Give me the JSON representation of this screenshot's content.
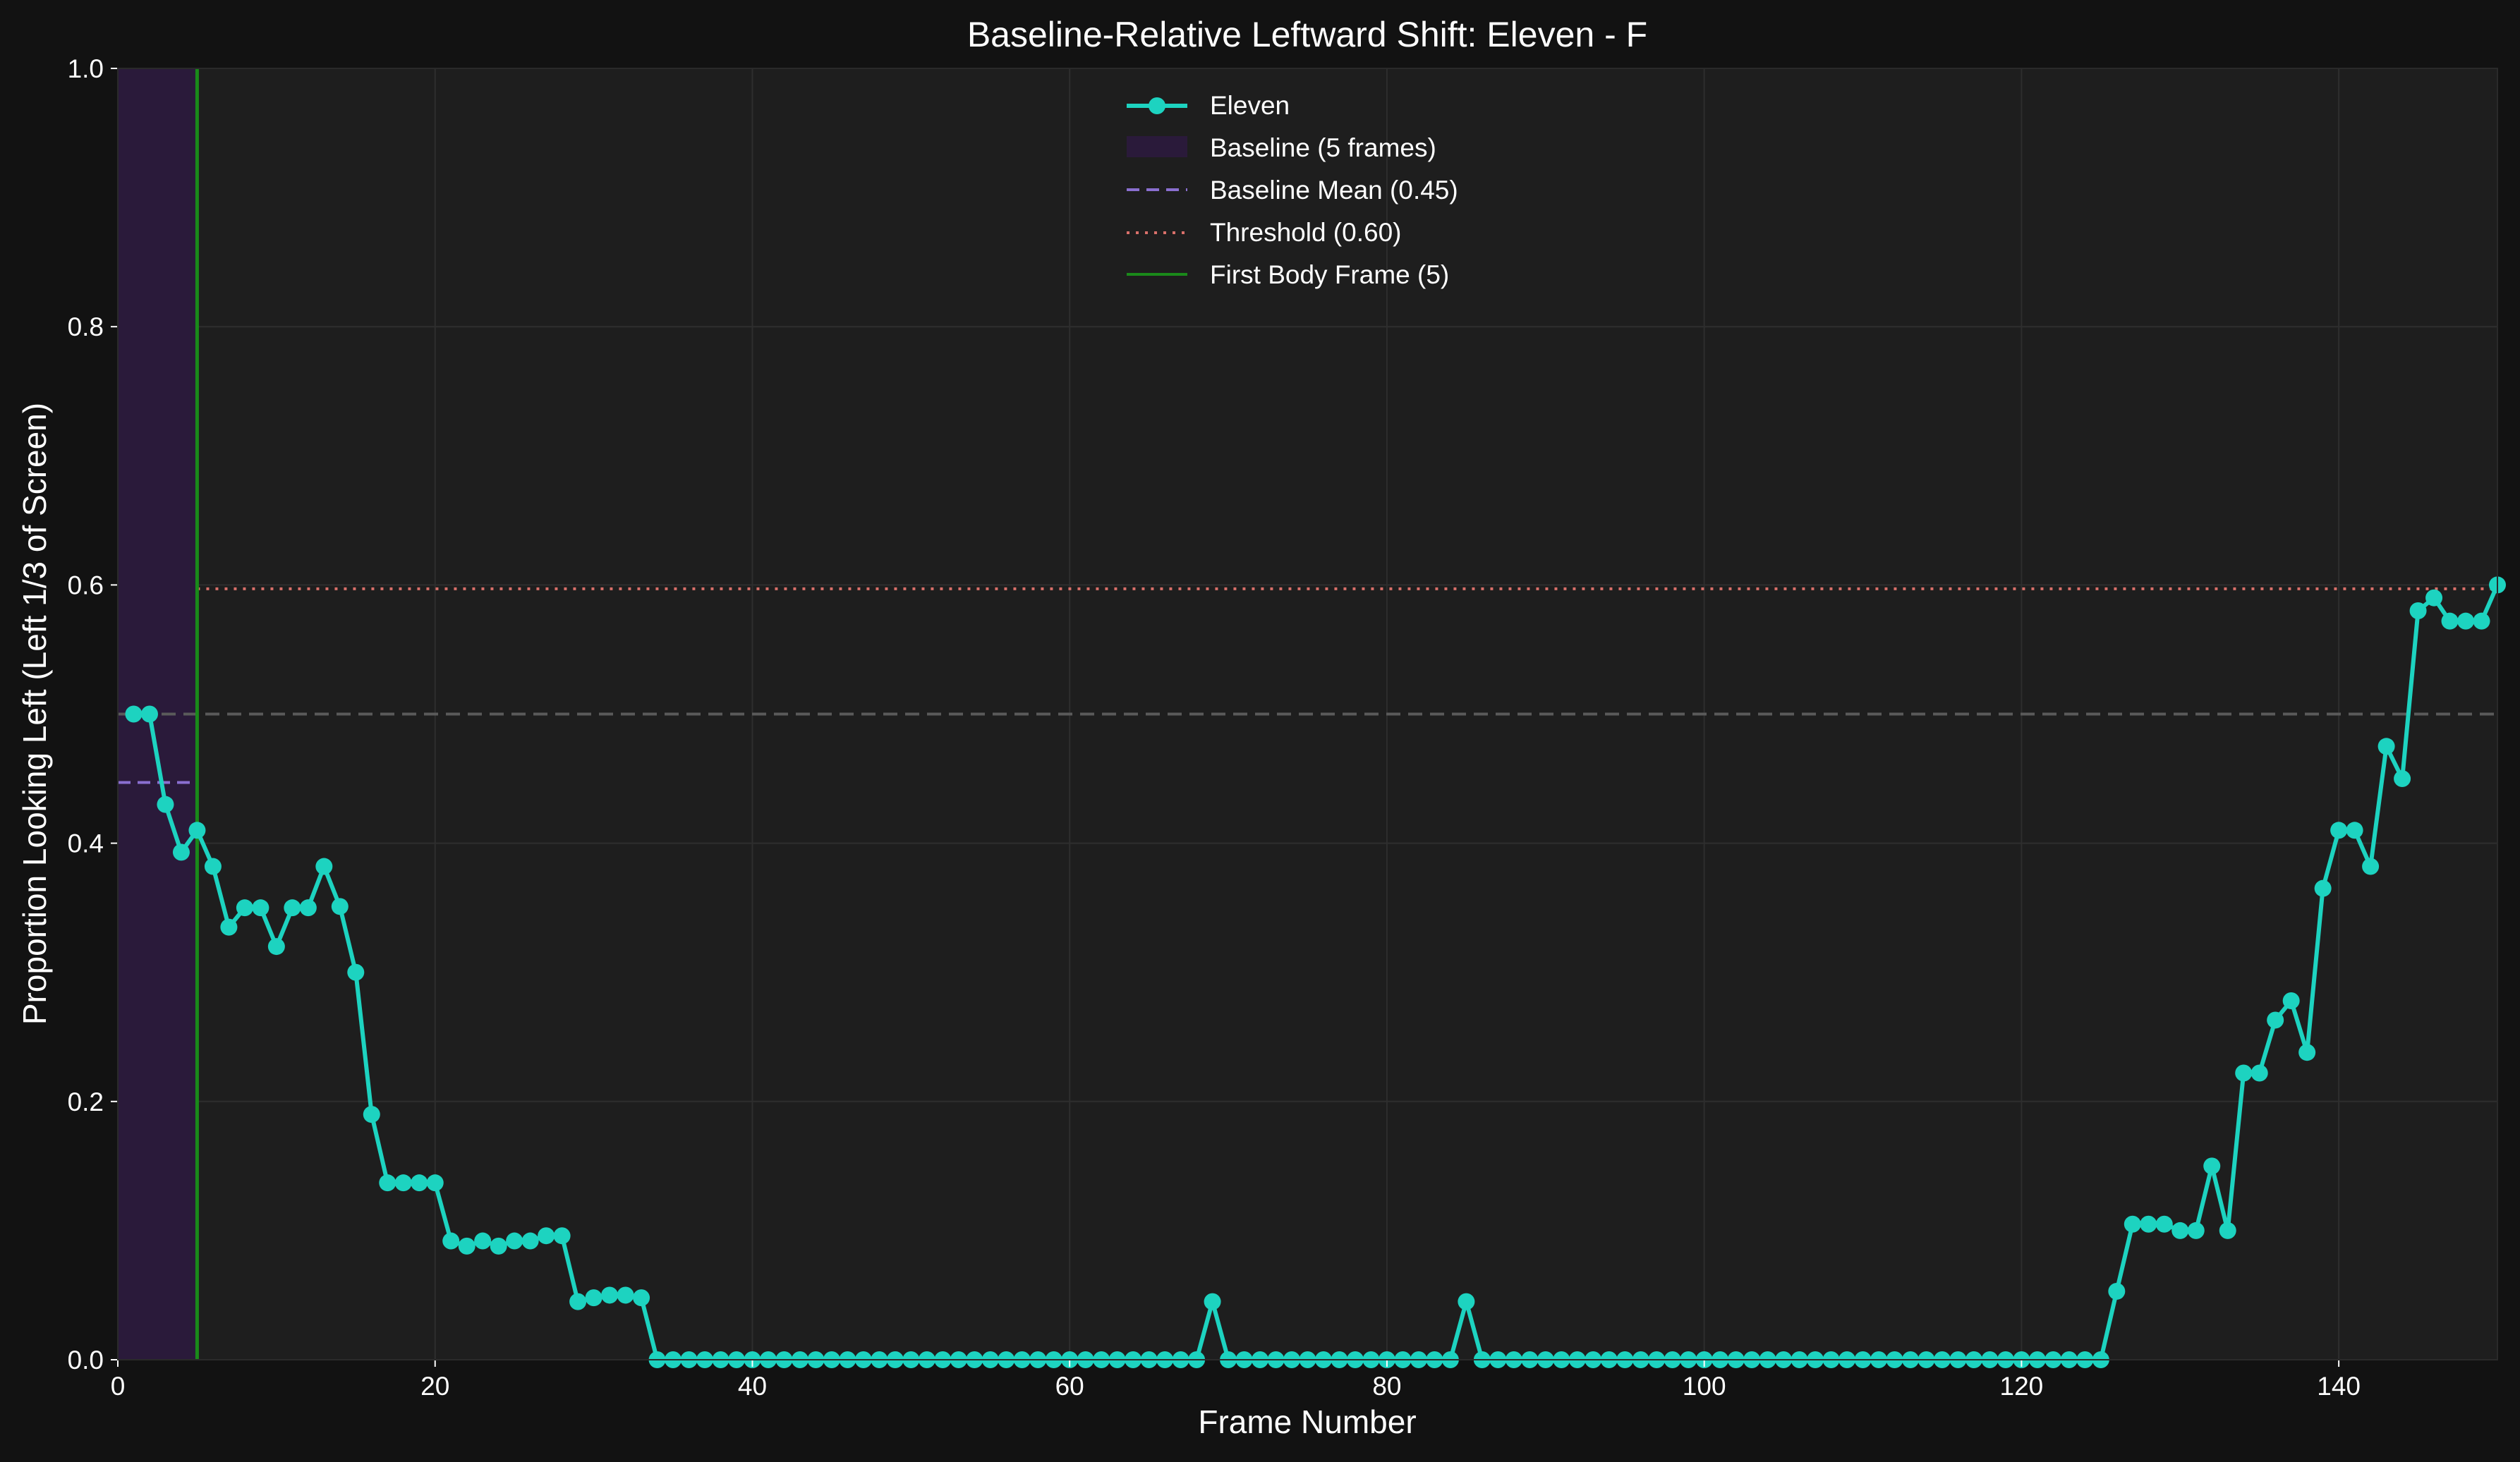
{
  "chart_data": {
    "type": "line",
    "title": "Baseline-Relative Leftward Shift: Eleven - F",
    "xlabel": "Frame Number",
    "ylabel": "Proportion Looking Left (Left 1/3 of Screen)",
    "xlim": [
      0,
      150
    ],
    "ylim": [
      0,
      1.0
    ],
    "x_ticks": [
      0,
      20,
      40,
      60,
      80,
      100,
      120,
      140
    ],
    "x_tick_labels": [
      "0",
      "20",
      "40",
      "60",
      "80",
      "100",
      "120",
      "140"
    ],
    "y_ticks": [
      0,
      0.2,
      0.4,
      0.6,
      0.8,
      1.0
    ],
    "y_tick_labels": [
      "0.0",
      "0.2",
      "0.4",
      "0.6",
      "0.8",
      "1.0"
    ],
    "grid": true,
    "legend_position": "top-center",
    "series": [
      {
        "name": "Eleven",
        "color": "#1dd3c0",
        "marker": "circle",
        "x": [
          1,
          2,
          3,
          4,
          5,
          6,
          7,
          8,
          9,
          10,
          11,
          12,
          13,
          14,
          15,
          16,
          17,
          18,
          19,
          20,
          21,
          22,
          23,
          24,
          25,
          26,
          27,
          28,
          29,
          30,
          31,
          32,
          33,
          34,
          35,
          36,
          37,
          38,
          39,
          40,
          41,
          42,
          43,
          44,
          45,
          46,
          47,
          48,
          49,
          50,
          51,
          52,
          53,
          54,
          55,
          56,
          57,
          58,
          59,
          60,
          61,
          62,
          63,
          64,
          65,
          66,
          67,
          68,
          69,
          70,
          71,
          72,
          73,
          74,
          75,
          76,
          77,
          78,
          79,
          80,
          81,
          82,
          83,
          84,
          85,
          86,
          87,
          88,
          89,
          90,
          91,
          92,
          93,
          94,
          95,
          96,
          97,
          98,
          99,
          100,
          101,
          102,
          103,
          104,
          105,
          106,
          107,
          108,
          109,
          110,
          111,
          112,
          113,
          114,
          115,
          116,
          117,
          118,
          119,
          120,
          121,
          122,
          123,
          124,
          125,
          126,
          127,
          128,
          129,
          130,
          131,
          132,
          133,
          134,
          135,
          136,
          137,
          138,
          139,
          140,
          141,
          142,
          143,
          144,
          145,
          146,
          147,
          148,
          149,
          150
        ],
        "y": [
          0.5,
          0.5,
          0.43,
          0.393,
          0.41,
          0.382,
          0.335,
          0.35,
          0.35,
          0.32,
          0.35,
          0.35,
          0.382,
          0.351,
          0.3,
          0.19,
          0.137,
          0.137,
          0.137,
          0.137,
          0.092,
          0.088,
          0.092,
          0.088,
          0.092,
          0.092,
          0.096,
          0.096,
          0.045,
          0.048,
          0.05,
          0.05,
          0.048,
          0,
          0,
          0,
          0,
          0,
          0,
          0,
          0,
          0,
          0,
          0,
          0,
          0,
          0,
          0,
          0,
          0,
          0,
          0,
          0,
          0,
          0,
          0,
          0,
          0,
          0,
          0,
          0,
          0,
          0,
          0,
          0,
          0,
          0,
          0,
          0.045,
          0,
          0,
          0,
          0,
          0,
          0,
          0,
          0,
          0,
          0,
          0,
          0,
          0,
          0,
          0,
          0.045,
          0,
          0,
          0,
          0,
          0,
          0,
          0,
          0,
          0,
          0,
          0,
          0,
          0,
          0,
          0,
          0,
          0,
          0,
          0,
          0,
          0,
          0,
          0,
          0,
          0,
          0,
          0,
          0,
          0,
          0,
          0,
          0,
          0,
          0,
          0,
          0,
          0,
          0,
          0,
          0,
          0.053,
          0.105,
          0.105,
          0.105,
          0.1,
          0.1,
          0.15,
          0.1,
          0.222,
          0.222,
          0.263,
          0.278,
          0.238,
          0.365,
          0.41,
          0.41,
          0.382,
          0.475,
          0.45,
          0.58,
          0.59,
          0.572,
          0.572,
          0.572,
          0.6
        ]
      }
    ],
    "baseline": {
      "legend_label": "Baseline (5 frames)",
      "x_range": [
        0,
        5
      ],
      "color": "#2a1a3a"
    },
    "baseline_mean": {
      "legend_label": "Baseline Mean (0.45)",
      "value": 0.447,
      "x_range": [
        0,
        5
      ],
      "color": "#8a6fd0",
      "style": "dashed"
    },
    "threshold": {
      "legend_label": "Threshold (0.60)",
      "value": 0.597,
      "x_range": [
        5,
        150
      ],
      "color": "#d9706a",
      "style": "dotted"
    },
    "first_body_frame": {
      "legend_label": "First Body Frame (5)",
      "value": 5,
      "color": "#1a8a1a"
    },
    "chance_line": {
      "value": 0.5,
      "color": "#5a5a5a",
      "style": "dashed"
    },
    "colors": {
      "figure_background": "#121212",
      "axes_background": "#1e1e1e",
      "grid": "#2e2e2e",
      "text": "#ffffff"
    }
  }
}
